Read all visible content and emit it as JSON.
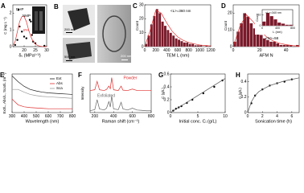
{
  "chart_data": [
    {
      "type": "scatter",
      "label": "A",
      "xlabel": "δₜ (MPa¹ᐟ²)",
      "ylabel": "C (mg L⁻¹)",
      "xlim": [
        15,
        30
      ],
      "xticks": [
        20,
        25,
        30
      ],
      "ylim": [
        0,
        2.5
      ],
      "yticks": [
        0,
        1,
        2
      ],
      "series": [
        {
          "style": "points",
          "color": "#000000",
          "x": [
            16,
            17,
            17.5,
            18,
            19,
            20,
            21,
            22.5,
            23,
            23.5,
            24,
            25,
            29
          ],
          "values": [
            0.1,
            0.4,
            2.2,
            1.2,
            0.9,
            0.6,
            0.5,
            1.6,
            1.5,
            0.7,
            0.3,
            0.2,
            0.05
          ]
        },
        {
          "style": "line",
          "color": "#e03030",
          "x": [
            15,
            16,
            17,
            18,
            19,
            20,
            21,
            22,
            23,
            24,
            25,
            26,
            27,
            28,
            29,
            30
          ],
          "values": [
            0.05,
            0.3,
            0.9,
            1.5,
            1.8,
            1.8,
            1.5,
            1.0,
            0.6,
            0.3,
            0.15,
            0.07,
            0.03,
            0.01,
            0,
            0
          ]
        }
      ],
      "annotations": [
        {
          "text": "DHP",
          "color": "#000000"
        },
        {
          "text": "NMP",
          "color": "#000000"
        },
        {
          "text": "IPA",
          "color": "#e03030"
        }
      ]
    },
    {
      "type": "histogram",
      "label": "C",
      "xlabel": "TEM L (nm)",
      "ylabel": "Count",
      "xlim": [
        0,
        1200
      ],
      "xticks": [
        0,
        200,
        400,
        600,
        800,
        1000,
        1200
      ],
      "ylim": [
        0,
        30
      ],
      "yticks": [
        0,
        10,
        20,
        30
      ],
      "bins": [
        0,
        50,
        100,
        150,
        200,
        250,
        300,
        350,
        400,
        450,
        500,
        550,
        600,
        650,
        700,
        750,
        800,
        850,
        900,
        950,
        1000,
        1050,
        1100,
        1150,
        1200
      ],
      "values": [
        2,
        8,
        16,
        22,
        27,
        24,
        18,
        15,
        12,
        10,
        8,
        6,
        5,
        4,
        3,
        3,
        2,
        2,
        1,
        1,
        1,
        0,
        1,
        0
      ],
      "color": "#7a1a2a",
      "series": [
        {
          "style": "line",
          "color": "#e03030",
          "x": [
            0,
            100,
            200,
            300,
            400,
            500,
            600,
            700,
            800,
            900,
            1000,
            1100,
            1200
          ],
          "values": [
            0,
            12,
            26,
            24,
            17,
            11,
            7,
            4.5,
            3,
            2,
            1.2,
            0.8,
            0.5
          ]
        }
      ],
      "annotations": [
        {
          "text": "<L>=360 nm",
          "color": "#000000"
        }
      ]
    },
    {
      "type": "histogram",
      "label": "D",
      "xlabel": "AFM N",
      "ylabel": "Count",
      "xlim": [
        0,
        50
      ],
      "xticks": [
        0,
        20,
        40
      ],
      "ylim": [
        0,
        25
      ],
      "yticks": [
        0,
        10,
        20
      ],
      "bins": [
        0,
        2.5,
        5,
        7.5,
        10,
        12.5,
        15,
        17.5,
        20,
        22.5,
        25,
        27.5,
        30,
        32.5,
        35,
        37.5,
        40,
        42.5,
        45,
        47.5,
        50
      ],
      "values": [
        3,
        9,
        14,
        20,
        18,
        14,
        11,
        8,
        7,
        5,
        4,
        3,
        3,
        2,
        1,
        1,
        1,
        1,
        0,
        1
      ],
      "color": "#7a1a2a",
      "series": [
        {
          "style": "line",
          "color": "#e03030",
          "x": [
            0,
            5,
            10,
            15,
            20,
            25,
            30,
            35,
            40,
            45,
            50
          ],
          "values": [
            0,
            12,
            19,
            15,
            10,
            6,
            3.5,
            2,
            1.2,
            0.6,
            0.3
          ]
        }
      ],
      "annotations": [
        {
          "text": "<N>=58",
          "color": "#000000"
        }
      ]
    },
    {
      "type": "histogram",
      "xlabel": "L (nm)",
      "ylabel": "Count",
      "xlim": [
        0,
        800
      ],
      "xticks": [
        0,
        400,
        800
      ],
      "ylim": [
        0,
        15
      ],
      "yticks": [
        0,
        10
      ],
      "bins": [
        0,
        100,
        200,
        300,
        400,
        500,
        600,
        700,
        800
      ],
      "values": [
        4,
        12,
        9,
        6,
        3,
        2,
        1,
        1
      ],
      "color": "#7a1a2a",
      "annotations": [
        {
          "text": "<L>=340 nm",
          "color": "#000000"
        }
      ]
    },
    {
      "type": "line",
      "label": "E",
      "xlabel": "Wavelength (nm)",
      "ylabel": "Ext/L, Abs/L, Scat/L (m⁻¹)",
      "xlim": [
        300,
        800
      ],
      "xticks": [
        300,
        400,
        500,
        600,
        700,
        800
      ],
      "ylim": [
        0,
        1
      ],
      "legend": "top-right",
      "x": [
        300,
        350,
        400,
        450,
        500,
        550,
        600,
        650,
        700,
        750,
        800
      ],
      "series": [
        {
          "name": "Ext",
          "style": "line",
          "color": "#222222",
          "values": [
            0.95,
            0.8,
            0.68,
            0.6,
            0.56,
            0.53,
            0.51,
            0.5,
            0.49,
            0.48,
            0.47
          ]
        },
        {
          "name": "Abs",
          "style": "line",
          "color": "#e03030",
          "values": [
            0.35,
            0.2,
            0.15,
            0.13,
            0.12,
            0.11,
            0.1,
            0.1,
            0.1,
            0.1,
            0.1
          ]
        },
        {
          "name": "Sca",
          "style": "line",
          "color": "#999999",
          "values": [
            0.6,
            0.6,
            0.53,
            0.47,
            0.44,
            0.42,
            0.41,
            0.4,
            0.39,
            0.38,
            0.37
          ]
        }
      ]
    },
    {
      "type": "line",
      "label": "F",
      "xlabel": "Raman shift (cm⁻¹)",
      "ylabel": "Intensity",
      "xlim": [
        150,
        800
      ],
      "xticks": [
        200,
        400,
        600,
        800
      ],
      "ylim": [
        0,
        1.05
      ],
      "legend": "inline",
      "x": [
        150,
        200,
        225,
        250,
        300,
        325,
        350,
        365,
        380,
        400,
        450,
        480,
        500,
        550,
        600,
        650,
        700,
        750,
        800
      ],
      "series": [
        {
          "name": "Powder",
          "style": "line",
          "color": "#e03030",
          "values": [
            0.6,
            0.62,
            0.85,
            0.62,
            0.6,
            0.63,
            0.72,
            0.65,
            0.95,
            0.62,
            0.6,
            0.72,
            0.61,
            0.6,
            0.64,
            0.6,
            0.6,
            0.6,
            0.6
          ]
        },
        {
          "name": "Exfoliated",
          "style": "line",
          "color": "#666666",
          "values": [
            0.05,
            0.08,
            0.35,
            0.1,
            0.07,
            0.12,
            0.3,
            0.15,
            0.45,
            0.1,
            0.08,
            0.28,
            0.1,
            0.07,
            0.12,
            0.07,
            0.06,
            0.05,
            0.05
          ]
        }
      ]
    },
    {
      "type": "scatter",
      "label": "G",
      "xlabel": "Initial conc. Cᵢ (g/L)",
      "ylabel": "C (g/L)",
      "xlim": [
        0,
        10
      ],
      "xticks": [
        0,
        5,
        10
      ],
      "ylim": [
        0,
        0.6
      ],
      "yticks": [
        0,
        0.2,
        0.4,
        0.6
      ],
      "series": [
        {
          "style": "points",
          "color": "#000000",
          "x": [
            0.5,
            1,
            1.5,
            2,
            3,
            4,
            6,
            8,
            9.5
          ],
          "values": [
            0.03,
            0.06,
            0.08,
            0.1,
            0.15,
            0.2,
            0.3,
            0.4,
            0.5
          ]
        },
        {
          "style": "line",
          "color": "#555555",
          "x": [
            0,
            10
          ],
          "values": [
            0,
            0.53
          ]
        }
      ]
    },
    {
      "type": "scatter",
      "label": "H",
      "xlabel": "Sonication time (h)",
      "ylabel": "C (g/L)",
      "xlim": [
        0,
        7
      ],
      "xticks": [
        0,
        2,
        4,
        6
      ],
      "ylim": [
        0,
        0.5
      ],
      "yticks": [
        0,
        0.2,
        0.4
      ],
      "series": [
        {
          "style": "points",
          "color": "#000000",
          "x": [
            0.5,
            1,
            2,
            3,
            4,
            5,
            6
          ],
          "values": [
            0.12,
            0.22,
            0.3,
            0.35,
            0.38,
            0.4,
            0.43
          ]
        },
        {
          "style": "line",
          "color": "#555555",
          "x": [
            0,
            0.5,
            1,
            1.5,
            2,
            3,
            4,
            5,
            6,
            7
          ],
          "values": [
            0,
            0.14,
            0.22,
            0.27,
            0.3,
            0.35,
            0.38,
            0.41,
            0.43,
            0.45
          ]
        }
      ]
    }
  ],
  "panel_b": {
    "label": "B",
    "scale_bars": [
      "200 nm",
      "500 nm",
      "200 nm"
    ]
  }
}
